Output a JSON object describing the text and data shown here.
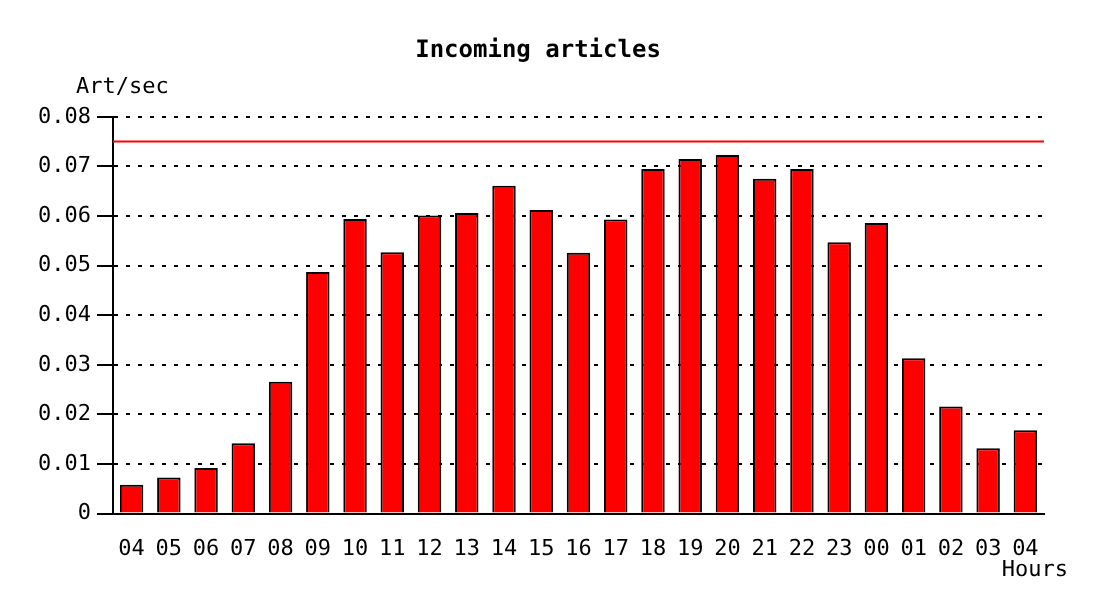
{
  "chart_data": {
    "type": "bar",
    "title": "Incoming articles",
    "ylabel": "Art/sec",
    "xlabel": "Hours",
    "categories": [
      "04",
      "05",
      "06",
      "07",
      "08",
      "09",
      "10",
      "11",
      "12",
      "13",
      "14",
      "15",
      "16",
      "17",
      "18",
      "19",
      "20",
      "21",
      "22",
      "23",
      "00",
      "01",
      "02",
      "03",
      "04"
    ],
    "values": [
      0.0058,
      0.0073,
      0.0092,
      0.0142,
      0.0266,
      0.0487,
      0.0594,
      0.0527,
      0.0601,
      0.0606,
      0.0661,
      0.0612,
      0.0526,
      0.0593,
      0.0695,
      0.0715,
      0.0723,
      0.0675,
      0.0695,
      0.0547,
      0.0586,
      0.0313,
      0.0216,
      0.0132,
      0.0168
    ],
    "color": "#ff0000",
    "ylim": [
      0,
      0.08
    ],
    "yticks": [
      0,
      0.01,
      0.02,
      0.03,
      0.04,
      0.05,
      0.06,
      0.07,
      0.08
    ],
    "ref_lines": [
      {
        "axis": "y",
        "value": 0.075,
        "color": "#ff0000",
        "line_style": "solid"
      }
    ],
    "grid": "y",
    "legend": false
  }
}
